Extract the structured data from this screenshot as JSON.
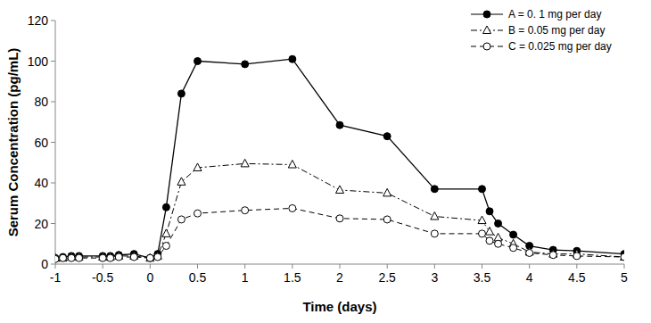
{
  "chart_data": {
    "type": "line",
    "x_label": "Time (days)",
    "y_label": "Serum Concentration (pg/mL)",
    "x": [
      -1,
      -0.92,
      -0.83,
      -0.75,
      -0.5,
      -0.42,
      -0.33,
      -0.17,
      0,
      0.08,
      0.17,
      0.33,
      0.5,
      1,
      1.5,
      2,
      2.5,
      3,
      3.5,
      3.58,
      3.67,
      3.83,
      4,
      4.25,
      4.5,
      5
    ],
    "series": [
      {
        "name": "A = 0. 1 mg per day",
        "color": "#000000",
        "marker": "filled-circle",
        "line_style": "solid",
        "values": [
          3,
          3.5,
          4,
          4,
          4,
          4,
          4.5,
          5,
          3,
          5,
          28,
          84,
          100,
          98.5,
          101,
          68.5,
          63,
          37,
          37,
          26,
          20,
          14.5,
          9,
          7,
          6.5,
          5
        ]
      },
      {
        "name": "B = 0.05 mg per day",
        "color": "#000000",
        "marker": "open-triangle",
        "line_style": "dashdot",
        "values": [
          3,
          3,
          3.5,
          3.5,
          3.5,
          3.5,
          4,
          4,
          3,
          4,
          15,
          40.5,
          47.5,
          49.5,
          49,
          36.5,
          35,
          23.5,
          21.5,
          16,
          13,
          10,
          6,
          5,
          5,
          3.5
        ]
      },
      {
        "name": "C = 0.025 mg per day",
        "color": "#000000",
        "marker": "open-circle",
        "line_style": "dashed",
        "values": [
          2.5,
          3,
          3,
          3,
          3,
          3,
          3.5,
          3.5,
          3,
          3.5,
          9,
          22,
          25,
          26.5,
          27.5,
          22.5,
          22,
          15,
          15,
          11.5,
          10,
          8,
          5.5,
          4.5,
          4,
          3.5
        ]
      }
    ],
    "xlim": [
      -1,
      5
    ],
    "xticks": [
      -1,
      -0.5,
      0,
      0.5,
      1,
      1.5,
      2,
      2.5,
      3,
      3.5,
      4,
      4.5,
      5
    ],
    "ylim": [
      0,
      120
    ],
    "yticks": [
      0,
      20,
      40,
      60,
      80,
      100,
      120
    ],
    "grid": false,
    "legend": "top-right"
  }
}
